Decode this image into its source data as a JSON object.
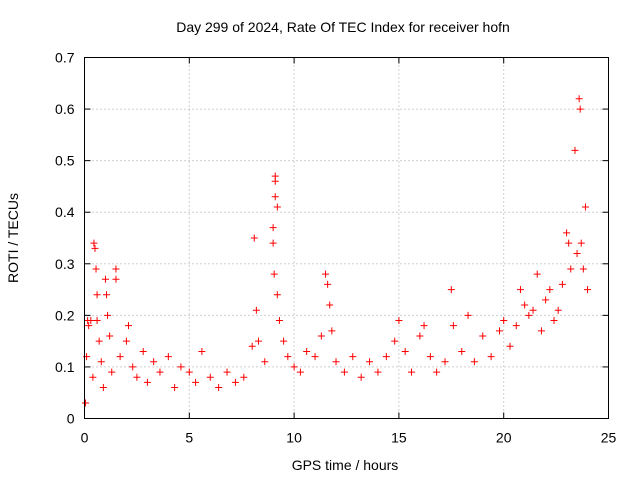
{
  "chart_data": {
    "type": "scatter",
    "title": "Day 299 of 2024, Rate Of TEC Index for receiver hofn",
    "xlabel": "GPS time / hours",
    "ylabel": "ROTI / TECUs",
    "xlim": [
      0,
      25
    ],
    "ylim": [
      0,
      0.7
    ],
    "xticks": [
      "0",
      "5",
      "10",
      "15",
      "20",
      "25"
    ],
    "yticks": [
      "0",
      "0.1",
      "0.2",
      "0.3",
      "0.4",
      "0.5",
      "0.6",
      "0.7"
    ],
    "grid": true,
    "marker": "plus",
    "color": "#ff0000",
    "series": [
      {
        "points": [
          [
            0.05,
            0.03
          ],
          [
            0.1,
            0.12
          ],
          [
            0.15,
            0.19
          ],
          [
            0.2,
            0.18
          ],
          [
            0.3,
            0.19
          ],
          [
            0.4,
            0.08
          ],
          [
            0.45,
            0.34
          ],
          [
            0.5,
            0.33
          ],
          [
            0.55,
            0.29
          ],
          [
            0.6,
            0.24
          ],
          [
            0.6,
            0.19
          ],
          [
            0.7,
            0.15
          ],
          [
            0.8,
            0.11
          ],
          [
            0.9,
            0.06
          ],
          [
            1.0,
            0.27
          ],
          [
            1.05,
            0.24
          ],
          [
            1.1,
            0.2
          ],
          [
            1.2,
            0.16
          ],
          [
            1.3,
            0.09
          ],
          [
            1.5,
            0.29
          ],
          [
            1.5,
            0.27
          ],
          [
            1.7,
            0.12
          ],
          [
            2.0,
            0.15
          ],
          [
            2.1,
            0.18
          ],
          [
            2.3,
            0.1
          ],
          [
            2.5,
            0.08
          ],
          [
            2.8,
            0.13
          ],
          [
            3.0,
            0.07
          ],
          [
            3.3,
            0.11
          ],
          [
            3.6,
            0.09
          ],
          [
            4.0,
            0.12
          ],
          [
            4.3,
            0.06
          ],
          [
            4.6,
            0.1
          ],
          [
            5.0,
            0.09
          ],
          [
            5.3,
            0.07
          ],
          [
            5.6,
            0.13
          ],
          [
            6.0,
            0.08
          ],
          [
            6.4,
            0.06
          ],
          [
            6.8,
            0.09
          ],
          [
            7.2,
            0.07
          ],
          [
            7.6,
            0.08
          ],
          [
            8.0,
            0.14
          ],
          [
            8.1,
            0.35
          ],
          [
            8.2,
            0.21
          ],
          [
            8.3,
            0.15
          ],
          [
            8.6,
            0.11
          ],
          [
            9.0,
            0.37
          ],
          [
            9.0,
            0.34
          ],
          [
            9.05,
            0.28
          ],
          [
            9.1,
            0.46
          ],
          [
            9.1,
            0.47
          ],
          [
            9.1,
            0.43
          ],
          [
            9.2,
            0.41
          ],
          [
            9.2,
            0.24
          ],
          [
            9.3,
            0.19
          ],
          [
            9.5,
            0.15
          ],
          [
            9.7,
            0.12
          ],
          [
            10.0,
            0.1
          ],
          [
            10.3,
            0.09
          ],
          [
            10.6,
            0.13
          ],
          [
            11.0,
            0.12
          ],
          [
            11.3,
            0.16
          ],
          [
            11.5,
            0.28
          ],
          [
            11.6,
            0.26
          ],
          [
            11.7,
            0.22
          ],
          [
            11.8,
            0.17
          ],
          [
            12.0,
            0.11
          ],
          [
            12.4,
            0.09
          ],
          [
            12.8,
            0.12
          ],
          [
            13.2,
            0.08
          ],
          [
            13.6,
            0.11
          ],
          [
            14.0,
            0.09
          ],
          [
            14.4,
            0.12
          ],
          [
            14.8,
            0.15
          ],
          [
            15.0,
            0.19
          ],
          [
            15.3,
            0.13
          ],
          [
            15.6,
            0.09
          ],
          [
            16.0,
            0.16
          ],
          [
            16.2,
            0.18
          ],
          [
            16.5,
            0.12
          ],
          [
            16.8,
            0.09
          ],
          [
            17.2,
            0.11
          ],
          [
            17.5,
            0.25
          ],
          [
            17.6,
            0.18
          ],
          [
            18.0,
            0.13
          ],
          [
            18.3,
            0.2
          ],
          [
            18.6,
            0.11
          ],
          [
            19.0,
            0.16
          ],
          [
            19.4,
            0.12
          ],
          [
            19.8,
            0.17
          ],
          [
            20.0,
            0.19
          ],
          [
            20.3,
            0.14
          ],
          [
            20.6,
            0.18
          ],
          [
            20.8,
            0.25
          ],
          [
            21.0,
            0.22
          ],
          [
            21.2,
            0.2
          ],
          [
            21.4,
            0.21
          ],
          [
            21.6,
            0.28
          ],
          [
            21.8,
            0.17
          ],
          [
            22.0,
            0.23
          ],
          [
            22.2,
            0.25
          ],
          [
            22.4,
            0.19
          ],
          [
            22.6,
            0.21
          ],
          [
            22.8,
            0.26
          ],
          [
            23.0,
            0.36
          ],
          [
            23.1,
            0.34
          ],
          [
            23.2,
            0.29
          ],
          [
            23.4,
            0.52
          ],
          [
            23.5,
            0.32
          ],
          [
            23.6,
            0.62
          ],
          [
            23.65,
            0.6
          ],
          [
            23.7,
            0.34
          ],
          [
            23.8,
            0.29
          ],
          [
            23.9,
            0.41
          ],
          [
            24.0,
            0.25
          ]
        ]
      }
    ]
  }
}
